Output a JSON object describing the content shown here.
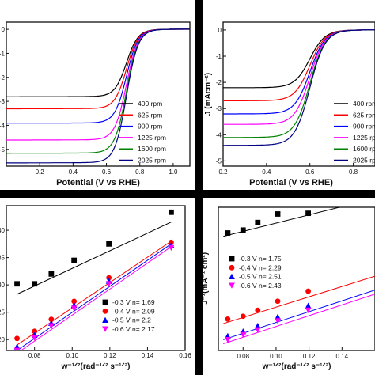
{
  "chart_data": [
    {
      "type": "line",
      "xlabel": "Potential (V vs RHE)",
      "ylabel": "",
      "xlim": [
        0.0,
        1.1
      ],
      "ylim": [
        -5.7,
        0.3
      ],
      "xticks": [
        "0.2",
        "0.4",
        "0.6",
        "0.8",
        "1.0"
      ],
      "yticks": [
        "0",
        "-1",
        "-2",
        "-3",
        "-4",
        "-5"
      ],
      "legend": "bottom-right",
      "half_wave": 0.72,
      "series": [
        {
          "name": "400 rpm",
          "color": "#000000",
          "limiting": -2.8
        },
        {
          "name": "625 rpm",
          "color": "#ff0000",
          "limiting": -3.3
        },
        {
          "name": "900 rpm",
          "color": "#0000ff",
          "limiting": -3.9
        },
        {
          "name": "1225 rpm",
          "color": "#ff00ff",
          "limiting": -4.6
        },
        {
          "name": "1600 rpm",
          "color": "#008000",
          "limiting": -5.15
        },
        {
          "name": "2025 rpm",
          "color": "#000080",
          "limiting": -5.55
        }
      ]
    },
    {
      "type": "line",
      "xlabel": "Potential (V vs RHE)",
      "ylabel": "J (mAcm⁻²)",
      "xlim": [
        0.2,
        0.9
      ],
      "ylim": [
        -5.2,
        0.3
      ],
      "xticks": [
        "0.2",
        "0.4",
        "0.6",
        "0.8"
      ],
      "yticks": [
        "0",
        "-1",
        "-2",
        "-3",
        "-4",
        "-5"
      ],
      "legend": "bottom-right",
      "half_wave": 0.6,
      "series": [
        {
          "name": "400 rpm",
          "color": "#000000",
          "limiting": -2.2
        },
        {
          "name": "625 rpm",
          "color": "#ff0000",
          "limiting": -2.7
        },
        {
          "name": "900 rpm",
          "color": "#0000ff",
          "limiting": -3.2
        },
        {
          "name": "1225 rpm",
          "color": "#ff00ff",
          "limiting": -3.6
        },
        {
          "name": "1600 rpm",
          "color": "#008000",
          "limiting": -4.1
        },
        {
          "name": "2025 rpm",
          "color": "#000080",
          "limiting": -4.4
        }
      ]
    },
    {
      "type": "scatter",
      "xlabel": "w⁻¹ᐟ²(rad⁻¹ᐟ² s⁻¹ᐟ²)",
      "ylabel": "",
      "xlim": [
        0.065,
        0.16
      ],
      "ylim": [
        0.18,
        0.445
      ],
      "xticks": [
        "0.08",
        "0.10",
        "0.12",
        "0.14",
        "0.16"
      ],
      "yticks": [
        ".20",
        ".25",
        ".30",
        ".35",
        ".40"
      ],
      "legend": "bottom-right",
      "x": [
        0.0707,
        0.08,
        0.0889,
        0.101,
        0.1195,
        0.1526
      ],
      "series": [
        {
          "name": "-0.3 V  n= 1.69",
          "color": "#000000",
          "marker": "square",
          "y": [
            0.302,
            0.302,
            0.32,
            0.345,
            0.375,
            0.433
          ],
          "fit": [
            [
              0.0707,
              0.283
            ],
            [
              0.1526,
              0.415
            ]
          ]
        },
        {
          "name": "-0.4 V  n= 2.09",
          "color": "#ff0000",
          "marker": "circle",
          "y": [
            0.202,
            0.215,
            0.237,
            0.27,
            0.313,
            0.378
          ],
          "fit": [
            [
              0.0707,
              0.19
            ],
            [
              0.1526,
              0.38
            ]
          ]
        },
        {
          "name": "-0.5 V  n= 2.2",
          "color": "#0000ff",
          "marker": "triangle-up",
          "y": [
            0.187,
            0.208,
            0.23,
            0.263,
            0.307,
            0.373
          ],
          "fit": [
            [
              0.0707,
              0.18
            ],
            [
              0.1526,
              0.375
            ]
          ]
        },
        {
          "name": "-0.6 V  n= 2.17",
          "color": "#ff00ff",
          "marker": "triangle-down",
          "y": [
            0.18,
            0.203,
            0.225,
            0.257,
            0.302,
            0.368
          ],
          "fit": [
            [
              0.0707,
              0.175
            ],
            [
              0.1526,
              0.37
            ]
          ]
        }
      ]
    },
    {
      "type": "scatter",
      "xlabel": "w⁻¹ᐟ²(rad⁻¹ᐟ² s⁻¹ᐟ²)",
      "ylabel": "J⁻¹(mA⁻¹ cm²)",
      "xlim": [
        0.065,
        0.16
      ],
      "ylim": [
        0.18,
        0.82
      ],
      "xticks": [
        "0.08",
        "0.10",
        "0.12",
        "0.14"
      ],
      "yticks": [],
      "legend": "middle-left",
      "x": [
        0.0707,
        0.08,
        0.0889,
        0.101,
        0.1195
      ],
      "series": [
        {
          "name": "-0.3 V  n= 1.75",
          "color": "#000000",
          "marker": "square",
          "y": [
            0.705,
            0.718,
            0.752,
            0.79,
            0.793
          ],
          "fit": [
            [
              0.068,
              0.69
            ],
            [
              0.16,
              0.86
            ]
          ]
        },
        {
          "name": "-0.4 V  n= 2.29",
          "color": "#ff0000",
          "marker": "circle",
          "y": [
            0.32,
            0.333,
            0.36,
            0.4,
            0.445
          ],
          "fit": [
            [
              0.068,
              0.3
            ],
            [
              0.16,
              0.512
            ]
          ]
        },
        {
          "name": "-0.5 V  n= 2.51",
          "color": "#0000ff",
          "marker": "triangle-up",
          "y": [
            0.245,
            0.265,
            0.29,
            0.33,
            0.38
          ],
          "fit": [
            [
              0.068,
              0.228
            ],
            [
              0.16,
              0.45
            ]
          ]
        },
        {
          "name": "-0.6 V  n= 2.43",
          "color": "#ff00ff",
          "marker": "triangle-down",
          "y": [
            0.228,
            0.25,
            0.272,
            0.312,
            0.36
          ],
          "fit": [
            [
              0.068,
              0.21
            ],
            [
              0.16,
              0.432
            ]
          ]
        }
      ]
    }
  ]
}
